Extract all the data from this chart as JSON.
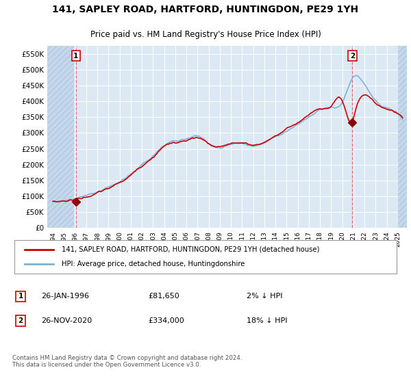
{
  "title": "141, SAPLEY ROAD, HARTFORD, HUNTINGDON, PE29 1YH",
  "subtitle": "Price paid vs. HM Land Registry's House Price Index (HPI)",
  "ylim": [
    0,
    575000
  ],
  "yticks": [
    0,
    50000,
    100000,
    150000,
    200000,
    250000,
    300000,
    350000,
    400000,
    450000,
    500000,
    550000
  ],
  "ytick_labels": [
    "£0",
    "£50K",
    "£100K",
    "£150K",
    "£200K",
    "£250K",
    "£300K",
    "£350K",
    "£400K",
    "£450K",
    "£500K",
    "£550K"
  ],
  "sale1_date": 1996.07,
  "sale1_price": 81650,
  "sale2_date": 2020.9,
  "sale2_price": 334000,
  "legend_line1": "141, SAPLEY ROAD, HARTFORD, HUNTINGDON, PE29 1YH (detached house)",
  "legend_line2": "HPI: Average price, detached house, Huntingdonshire",
  "note1_num": "1",
  "note1_date": "26-JAN-1996",
  "note1_price": "£81,650",
  "note1_pct": "2% ↓ HPI",
  "note2_num": "2",
  "note2_date": "26-NOV-2020",
  "note2_price": "£334,000",
  "note2_pct": "18% ↓ HPI",
  "copyright": "Contains HM Land Registry data © Crown copyright and database right 2024.\nThis data is licensed under the Open Government Licence v3.0.",
  "line_color_red": "#cc0000",
  "line_color_blue": "#7fb3d3",
  "marker_color": "#8b0000",
  "dashed_line_color": "#e06060",
  "plot_bg": "#dce9f5",
  "hatch_bg": "#c5d8eb",
  "xlim_left": 1993.5,
  "xlim_right": 2025.8,
  "hatch_end": 1995.9
}
